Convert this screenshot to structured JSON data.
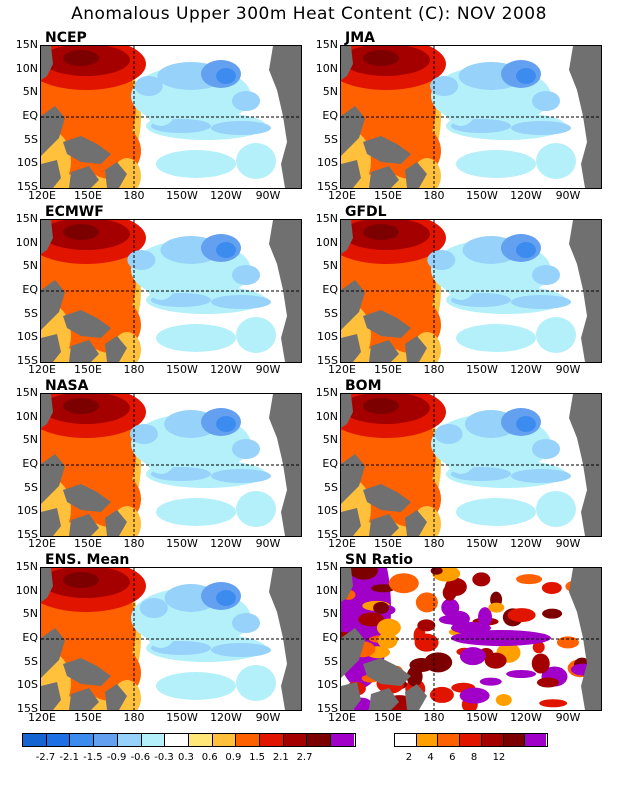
{
  "title": "Anomalous Upper 300m Heat Content (C): NOV 2008",
  "chart_data": {
    "type": "heatmap",
    "x_ticks": [
      "120E",
      "150E",
      "180",
      "150W",
      "120W",
      "90W"
    ],
    "y_ticks": [
      "15N",
      "10N",
      "5N",
      "EQ",
      "5S",
      "10S",
      "15S"
    ],
    "panels": [
      {
        "name": "NCEP",
        "kind": "anomaly"
      },
      {
        "name": "JMA",
        "kind": "anomaly"
      },
      {
        "name": "ECMWF",
        "kind": "anomaly"
      },
      {
        "name": "GFDL",
        "kind": "anomaly"
      },
      {
        "name": "NASA",
        "kind": "anomaly"
      },
      {
        "name": "BOM",
        "kind": "anomaly"
      },
      {
        "name": "ENS. Mean",
        "kind": "anomaly"
      },
      {
        "name": "SN Ratio",
        "kind": "snr"
      }
    ],
    "anomaly_levels": [
      "-2.7",
      "-2.1",
      "-1.5",
      "-0.9",
      "-0.6",
      "-0.3",
      "0.3",
      "0.6",
      "0.9",
      "1.5",
      "2.1",
      "2.7"
    ],
    "anomaly_colors": [
      "#1464d2",
      "#1e6ee6",
      "#3c8cf0",
      "#64a0f0",
      "#96d2fa",
      "#b4f0fa",
      "#ffffff",
      "#ffe878",
      "#ffc03c",
      "#ff6000",
      "#e11400",
      "#a50000",
      "#7d0000",
      "#a000c8"
    ],
    "snr_levels": [
      "2",
      "4",
      "6",
      "8",
      "12"
    ],
    "snr_colors": [
      "#ffffff",
      "#ffa000",
      "#ff6000",
      "#e11400",
      "#a50000",
      "#7d0000",
      "#a000c8"
    ]
  }
}
